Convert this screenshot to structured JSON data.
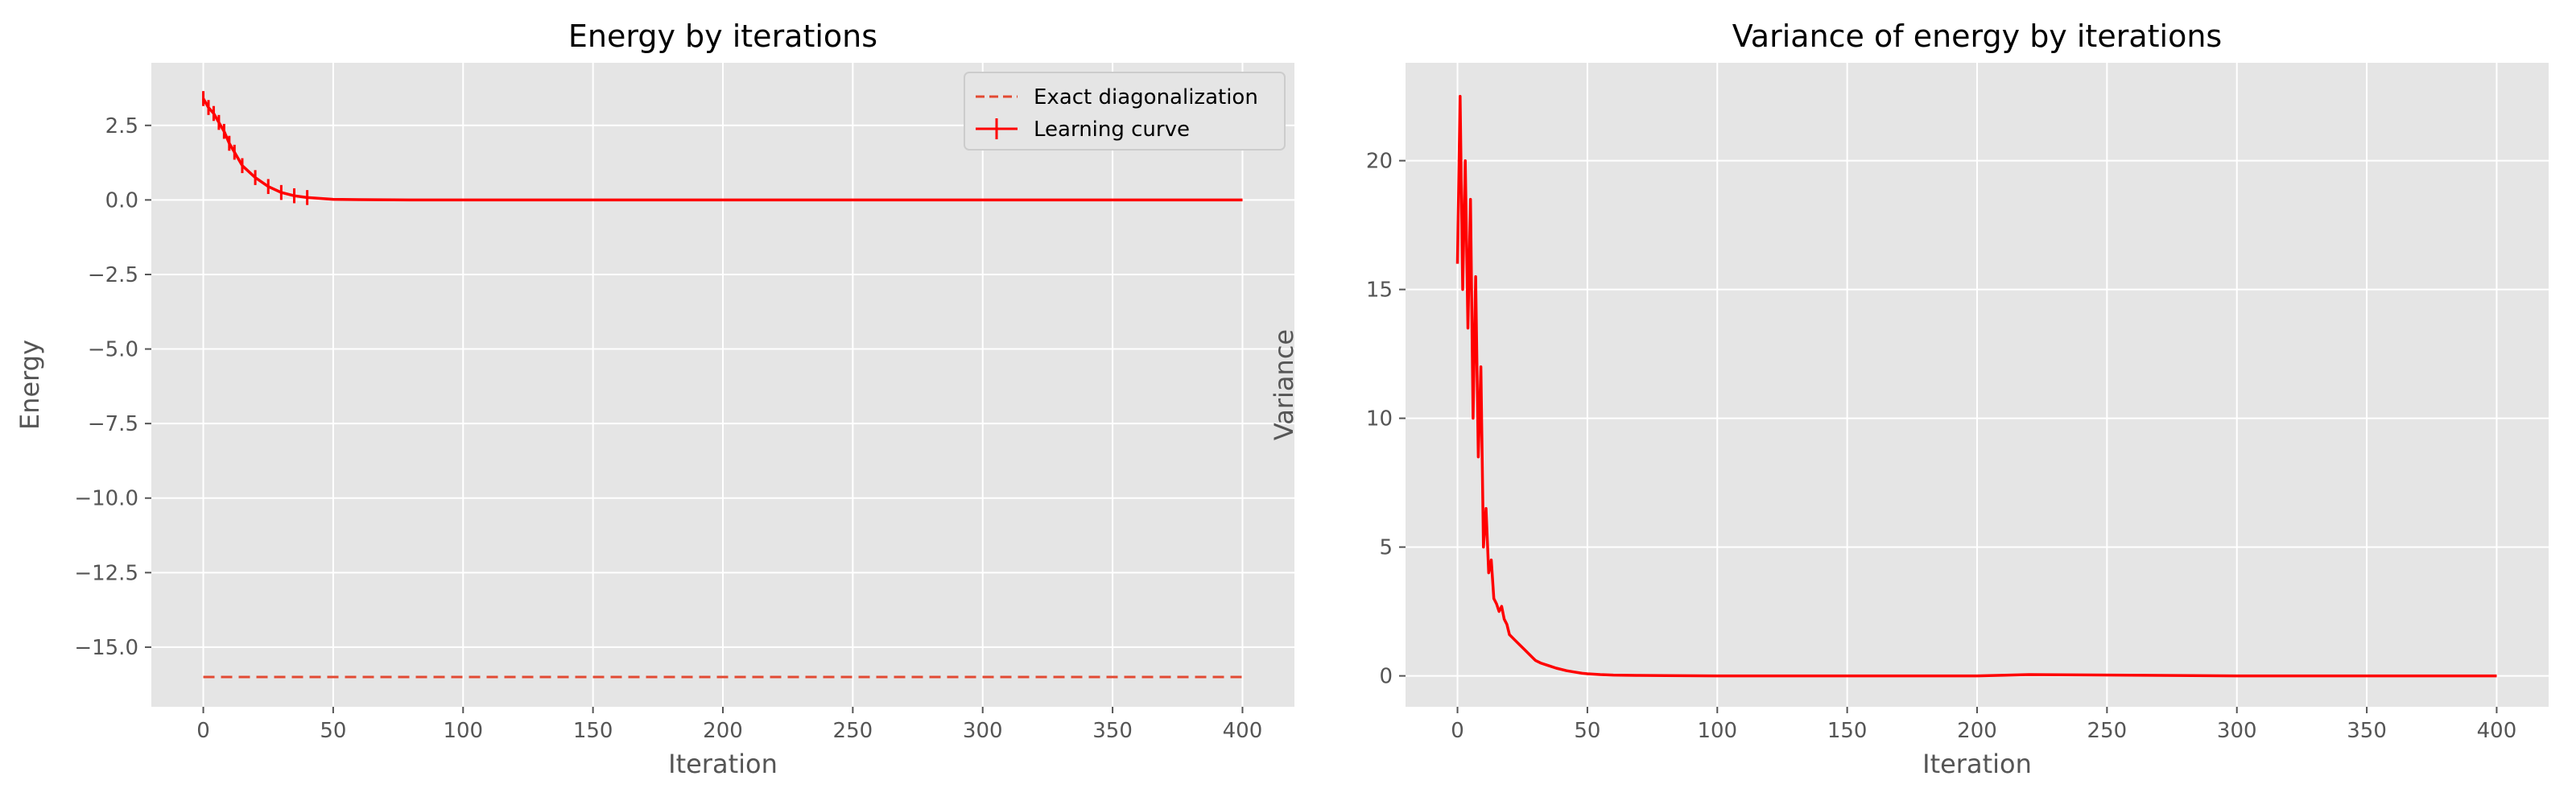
{
  "chart_data": [
    {
      "type": "line",
      "title": "Energy by iterations",
      "xlabel": "Iteration",
      "ylabel": "Energy",
      "xlim": [
        -20,
        420
      ],
      "ylim": [
        -17.0,
        4.6
      ],
      "xticks": [
        0,
        50,
        100,
        150,
        200,
        250,
        300,
        350,
        400
      ],
      "yticks": [
        2.5,
        0.0,
        -2.5,
        -5.0,
        -7.5,
        -10.0,
        -12.5,
        -15.0
      ],
      "xtick_labels": [
        "0",
        "50",
        "100",
        "150",
        "200",
        "250",
        "300",
        "350",
        "400"
      ],
      "ytick_labels": [
        "2.5",
        "0.0",
        "−2.5",
        "−5.0",
        "−7.5",
        "−10.0",
        "−12.5",
        "−15.0"
      ],
      "grid": true,
      "legend": {
        "placement": "top-right",
        "entries": [
          "Exact diagonalization",
          "Learning curve"
        ]
      },
      "series": [
        {
          "name": "Exact diagonalization",
          "style": "dashed",
          "color": "#e24a33",
          "x": [
            0,
            400
          ],
          "y": [
            -16.0,
            -16.0
          ]
        },
        {
          "name": "Learning curve",
          "style": "solid-errorbar",
          "color": "#ff0000",
          "x": [
            0,
            2,
            4,
            6,
            8,
            10,
            12,
            15,
            20,
            25,
            30,
            35,
            40,
            45,
            50,
            60,
            80,
            100,
            400
          ],
          "y": [
            3.4,
            3.1,
            2.9,
            2.6,
            2.3,
            1.9,
            1.6,
            1.15,
            0.75,
            0.45,
            0.25,
            0.14,
            0.08,
            0.05,
            0.02,
            0.01,
            0.0,
            0.0,
            0.0
          ]
        }
      ]
    },
    {
      "type": "line",
      "title": "Variance of energy by iterations",
      "xlabel": "Iteration",
      "ylabel": "Variance",
      "xlim": [
        -20,
        420
      ],
      "ylim": [
        -1.2,
        23.8
      ],
      "xticks": [
        0,
        50,
        100,
        150,
        200,
        250,
        300,
        350,
        400
      ],
      "yticks": [
        0,
        5,
        10,
        15,
        20
      ],
      "xtick_labels": [
        "0",
        "50",
        "100",
        "150",
        "200",
        "250",
        "300",
        "350",
        "400"
      ],
      "ytick_labels": [
        "0",
        "5",
        "10",
        "15",
        "20"
      ],
      "grid": true,
      "series": [
        {
          "color": "#ff0000",
          "x": [
            0,
            1,
            2,
            3,
            4,
            5,
            6,
            7,
            8,
            9,
            10,
            11,
            12,
            13,
            14,
            15,
            16,
            17,
            18,
            19,
            20,
            22,
            24,
            26,
            28,
            30,
            32,
            35,
            38,
            40,
            42,
            45,
            48,
            50,
            55,
            60,
            70,
            80,
            100,
            150,
            200,
            220,
            300,
            400
          ],
          "y": [
            16.0,
            22.5,
            15.0,
            20.0,
            13.5,
            18.5,
            10.0,
            15.5,
            8.5,
            12.0,
            5.0,
            6.5,
            4.0,
            4.5,
            3.0,
            2.8,
            2.5,
            2.7,
            2.2,
            2.0,
            1.6,
            1.4,
            1.2,
            1.0,
            0.8,
            0.6,
            0.5,
            0.4,
            0.3,
            0.25,
            0.2,
            0.15,
            0.1,
            0.08,
            0.05,
            0.03,
            0.02,
            0.01,
            0.0,
            0.0,
            0.0,
            0.05,
            0.0,
            0.0
          ]
        }
      ]
    }
  ]
}
